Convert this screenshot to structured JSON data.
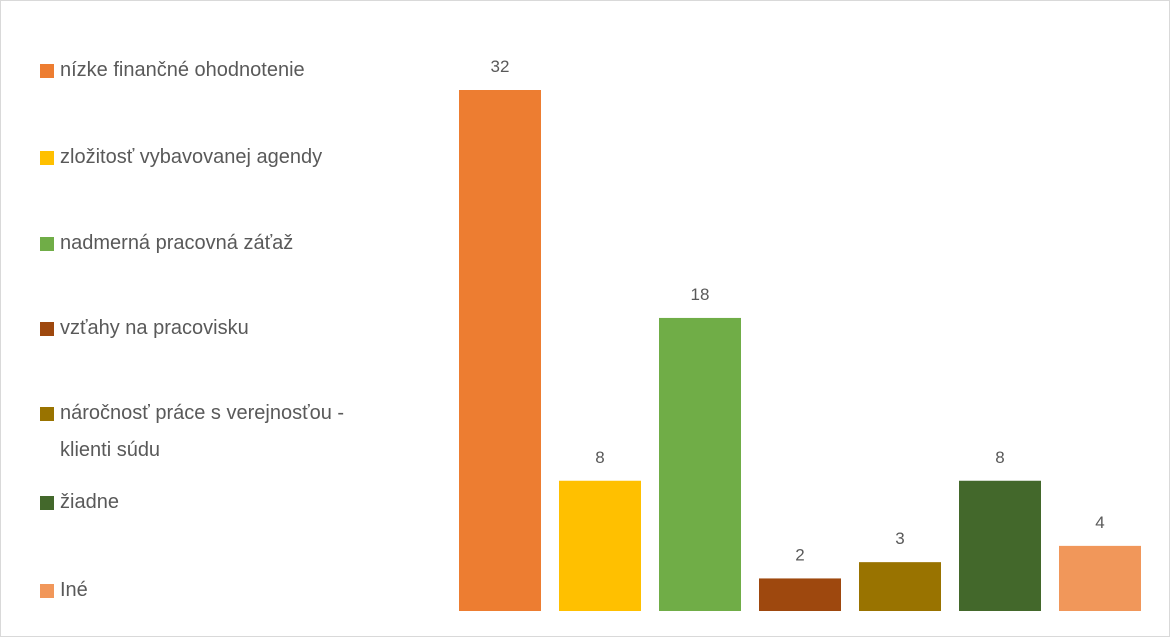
{
  "chart_data": {
    "type": "bar",
    "categories": [
      "nízke finančné ohodnotenie",
      "zložitosť vybavovanej agendy",
      "nadmerná pracovná záťaž",
      "vzťahy na pracovisku",
      "náročnosť práce s verejnosťou - klienti súdu",
      "žiadne",
      "Iné"
    ],
    "values": [
      32,
      8,
      18,
      2,
      3,
      8,
      4
    ],
    "colors": [
      "#ed7d31",
      "#ffc000",
      "#70ad47",
      "#9e480e",
      "#997300",
      "#43682b",
      "#f1975a"
    ]
  }
}
